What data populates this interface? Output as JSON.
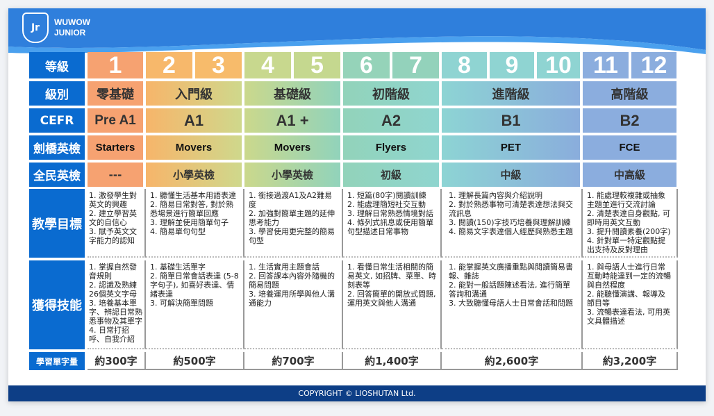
{
  "brand": {
    "line1": "WUWOW",
    "line2": "JUNIOR",
    "mark": "Jr"
  },
  "footer": "COPYRIGHT © LIOSHUTAN Ltd.",
  "colors": {
    "label": "#0a6bd0",
    "header": "#2f7fdc",
    "footer": "#0d3e86"
  },
  "row_labels": [
    "等級",
    "級別",
    "CEFR",
    "劍橋英檢",
    "全民英檢",
    "教學目標",
    "獲得技能",
    "學習單字量"
  ],
  "levels": [
    "1",
    "2",
    "3",
    "4",
    "5",
    "6",
    "7",
    "8",
    "9",
    "10",
    "11",
    "12"
  ],
  "groups": [
    {
      "tier": "零基礎",
      "cefr": "Pre A1",
      "cambridge": "Starters",
      "gept": "---",
      "goals": "1. 激發學生對英文的興趣\n2. 建立學習英文的自信心\n3. 賦予英文文字能力的認知",
      "skills": "1. 掌握自然發音規則\n2. 認識及熟練26個英文字母\n3. 培養基本單字、辨認日常熟悉事物及其單字\n4. 日常打招呼、自我介紹",
      "words": "約300字"
    },
    {
      "tier": "入門級",
      "cefr": "A1",
      "cambridge": "Movers",
      "gept": "小學英檢",
      "goals": "1. 聽懂生活基本用語表達\n2. 簡易日常對答, 對於熟悉場景進行簡單回應\n3. 理解並使用簡單句子\n4. 簡易單句句型",
      "skills": "1. 基礎生活單字\n2. 簡單日常會話表達 (5-8字句子), 如喜好表達、情緒表達\n3. 可解決簡單問題",
      "words": "約500字"
    },
    {
      "tier": "基礎級",
      "cefr": "A1 +",
      "cambridge": "Movers",
      "gept": "小學英檢",
      "goals": "1. 銜接過渡A1及A2難易度\n2. 加強對簡單主題的延伸思考能力\n3. 學習使用更完整的簡易句型",
      "skills": "1. 生活實用主題會話\n2. 回答課本內容外隨機的簡易問題\n3. 培養運用所學與他人溝通能力",
      "words": "約700字"
    },
    {
      "tier": "初階級",
      "cefr": "A2",
      "cambridge": "Flyers",
      "gept": "初級",
      "goals": "1. 短篇(80字)閱讀訓練\n2. 能處理簡短社交互動\n3. 理解日常熟悉情境對話\n4. 條列式訊息或使用簡單句型描述日常事物",
      "skills": "1. 看懂日常生活相關的簡易英文, 如招牌、菜單、時刻表等\n2. 回答簡單的開放式問題, 運用英文與他人溝通",
      "words": "約1,400字"
    },
    {
      "tier": "進階級",
      "cefr": "B1",
      "cambridge": "PET",
      "gept": "中級",
      "goals": "1. 理解長篇內容與介紹說明\n2. 對於熟悉事物可清楚表達想法與交流訊息\n3. 閱讀(150)字技巧培養與理解訓練\n4. 簡易文字表達個人經歷與熟悉主題",
      "skills": "1. 能掌握英文廣播重點與閱讀簡易書報、雜誌\n2. 能對一般話題陳述看法, 進行簡單答詢和溝通\n3. 大致聽懂母語人士日常會話和問題",
      "words": "約2,600字"
    },
    {
      "tier": "高階級",
      "cefr": "B2",
      "cambridge": "FCE",
      "gept": "中高級",
      "goals": "1. 能處理較複雜或抽象主題並進行交流討論\n2. 清楚表達自身觀點, 可即時用英文互動\n3. 提升閱讀素養(200字)\n4. 針對單一特定觀點提出支持及反對理由",
      "skills": "1. 與母語人士進行日常互動時能達到一定的流暢與自然程度\n2. 能聽懂演講、報導及節目等\n3. 流暢表達看法, 可用英文具體描述",
      "words": "約3,200字"
    }
  ]
}
